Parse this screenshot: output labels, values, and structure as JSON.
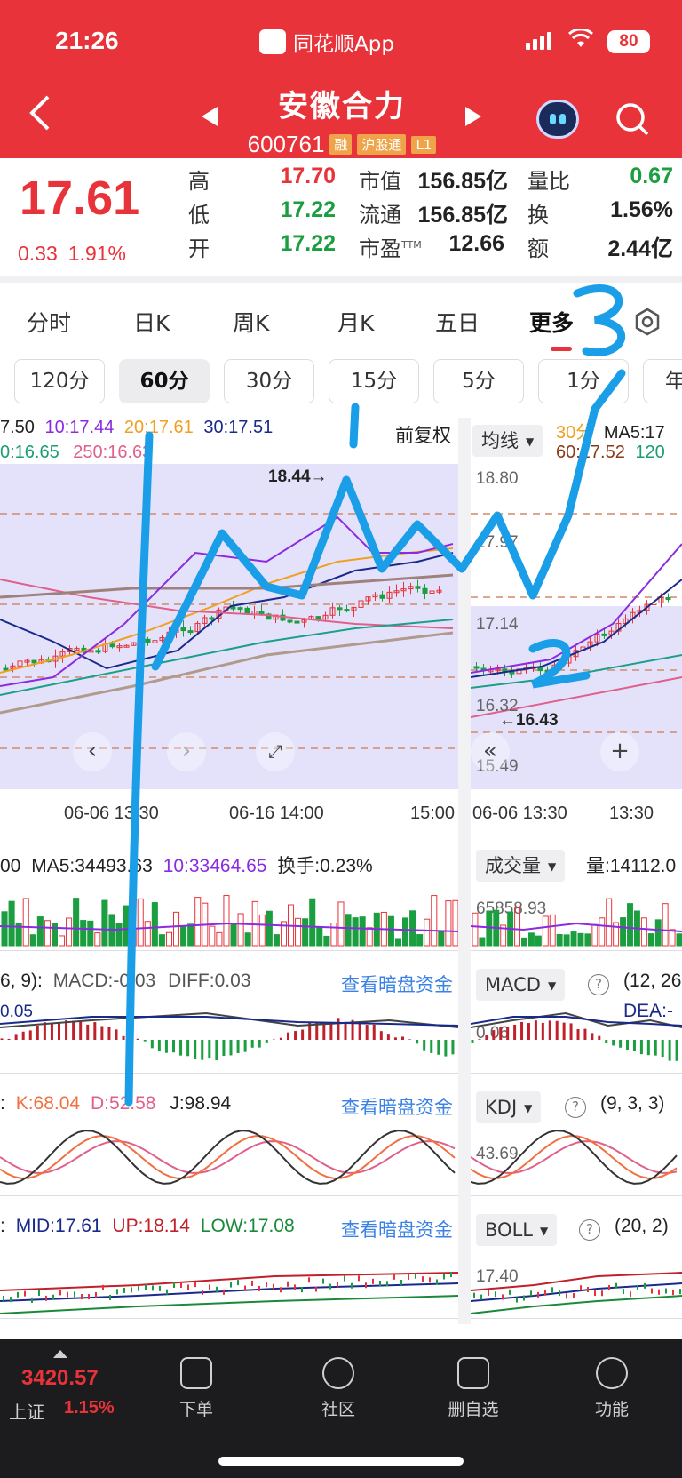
{
  "status_bar": {
    "time": "21:26",
    "app_name": "同花顺App",
    "battery": "80"
  },
  "header": {
    "stock_name": "安徽合力",
    "stock_code": "600761",
    "tags": [
      "融",
      "沪股通",
      "L1"
    ]
  },
  "quote": {
    "price": "17.61",
    "change": "0.33",
    "change_pct": "1.91%",
    "high_label": "高",
    "high": "17.70",
    "low_label": "低",
    "low": "17.22",
    "open_label": "开",
    "open": "17.22",
    "mktcap_label": "市值",
    "mktcap": "156.85亿",
    "float_label": "流通",
    "float": "156.85亿",
    "pe_label": "市盈",
    "pe_sup": "TTM",
    "pe": "12.66",
    "vol_ratio_label": "量比",
    "vol_ratio": "0.67",
    "turnover_label": "换",
    "turnover": "1.56%",
    "amount_label": "额",
    "amount": "2.44亿"
  },
  "tabs": [
    "分时",
    "日K",
    "周K",
    "月K",
    "五日",
    "更多"
  ],
  "periods": [
    "120分",
    "60分",
    "30分",
    "15分",
    "5分",
    "1分",
    "年"
  ],
  "main_chart": {
    "ma_row1": {
      "a": "7.50",
      "b": "10:17.44",
      "c": "20:17.61",
      "d": "30:17.51"
    },
    "ma_row2": {
      "a": "0:16.65",
      "b": "250:16.63"
    },
    "adjust_label": "前复权",
    "high_annotation": "18.44→",
    "x_labels": [
      "06-06 13:30",
      "06-16 14:00",
      "15:00"
    ]
  },
  "side_chart": {
    "dropdown": "均线",
    "ma_row1": {
      "a": "30分",
      "b": "MA5:17"
    },
    "ma_row2": {
      "a": "60:17.52",
      "b": "120"
    },
    "prices": [
      "18.80",
      "17.97",
      "17.14",
      "16.32",
      "15.49"
    ],
    "low_annotation": "←16.43",
    "x_labels": [
      "06-06 13:30",
      "13:30"
    ]
  },
  "volume": {
    "header": {
      "a": "00",
      "b": "MA5:34493.63",
      "c": "10:33464.65",
      "d": "换手:0.23%"
    },
    "side_dropdown": "成交量",
    "side_value": "量:14112.0",
    "side_axis": "65858.93"
  },
  "macd": {
    "header": {
      "a": "6, 9):",
      "b": "MACD:-0.03",
      "c": "DIFF:0.03"
    },
    "axis": "0.05",
    "link": "查看暗盘资金",
    "side_dropdown": "MACD",
    "side_params": "(12, 26",
    "side_dea": "DEA:-",
    "side_axis": "0.06"
  },
  "kdj": {
    "header": {
      "a": ":",
      "b": "K:68.04",
      "c": "D:52.58",
      "d": "J:98.94"
    },
    "link": "查看暗盘资金",
    "side_dropdown": "KDJ",
    "side_params": "(9, 3, 3)",
    "side_axis": "43.69"
  },
  "boll": {
    "header": {
      "a": ":",
      "b": "MID:17.61",
      "c": "UP:18.14",
      "d": "LOW:17.08"
    },
    "link": "查看暗盘资金",
    "side_dropdown": "BOLL",
    "side_params": "(20, 2)",
    "side_axis": "17.40"
  },
  "bottom_nav": {
    "index_value": "3420.57",
    "index_name": "上证",
    "index_pct": "1.15%",
    "items": [
      "下单",
      "社区",
      "删自选",
      "功能"
    ]
  },
  "colors": {
    "header_red": "#e8333a",
    "chart_bg": "#e4e2fb",
    "up_red": "#e8333a",
    "down_green": "#1a9e3f",
    "annotation_blue": "#1a9ee8"
  }
}
